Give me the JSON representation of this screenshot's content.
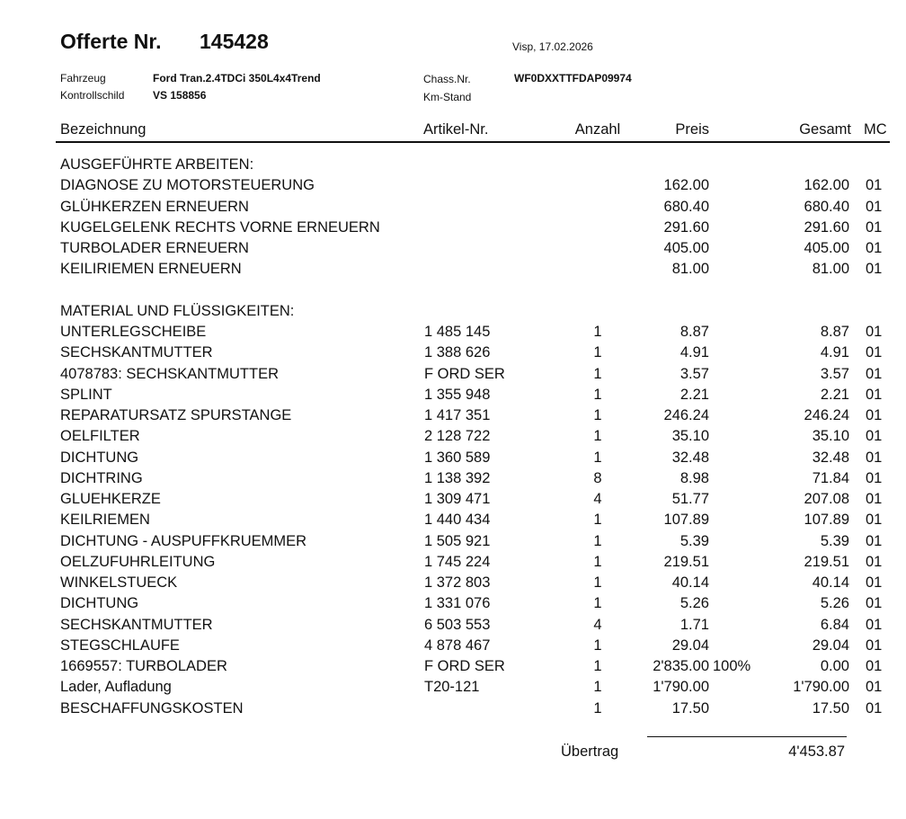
{
  "header": {
    "title": "Offerte Nr.",
    "number": "145428",
    "place_date": "Visp, 17.02.2026",
    "vehicle_label": "Fahrzeug",
    "vehicle": "Ford Tran.2.4TDCi 350L4x4Trend",
    "plate_label": "Kontrollschild",
    "plate": "VS 158856",
    "chassis_label": "Chass.Nr.",
    "chassis": "WF0DXXTTFDAP09974",
    "km_label": "Km-Stand"
  },
  "table": {
    "columns": [
      "Bezeichnung",
      "Artikel-Nr.",
      "Anzahl",
      "Preis",
      "Gesamt",
      "MC"
    ],
    "sections": [
      {
        "title": "AUSGEFÜHRTE ARBEITEN:",
        "rows": [
          {
            "name": "DIAGNOSE ZU MOTORSTEUERUNG",
            "price": "162.00",
            "total": "162.00",
            "mc": "01"
          },
          {
            "name": "GLÜHKERZEN ERNEUERN",
            "price": "680.40",
            "total": "680.40",
            "mc": "01"
          },
          {
            "name": "KUGELGELENK RECHTS VORNE ERNEUERN",
            "price": "291.60",
            "total": "291.60",
            "mc": "01"
          },
          {
            "name": "TURBOLADER ERNEUERN",
            "price": "405.00",
            "total": "405.00",
            "mc": "01"
          },
          {
            "name": "KEILIRIEMEN ERNEUERN",
            "price": "81.00",
            "total": "81.00",
            "mc": "01"
          }
        ]
      },
      {
        "title": "MATERIAL UND FLÜSSIGKEITEN:",
        "rows": [
          {
            "name": "UNTERLEGSCHEIBE",
            "article": "1 485 145",
            "qty": "1",
            "price": "8.87",
            "total": "8.87",
            "mc": "01"
          },
          {
            "name": "SECHSKANTMUTTER",
            "article": "1 388 626",
            "qty": "1",
            "price": "4.91",
            "total": "4.91",
            "mc": "01"
          },
          {
            "name": "4078783: SECHSKANTMUTTER",
            "article": "F ORD SER",
            "qty": "1",
            "price": "3.57",
            "total": "3.57",
            "mc": "01"
          },
          {
            "name": "SPLINT",
            "article": "1 355 948",
            "qty": "1",
            "price": "2.21",
            "total": "2.21",
            "mc": "01"
          },
          {
            "name": "REPARATURSATZ SPURSTANGE",
            "article": "1 417 351",
            "qty": "1",
            "price": "246.24",
            "total": "246.24",
            "mc": "01"
          },
          {
            "name": "OELFILTER",
            "article": "2 128 722",
            "qty": "1",
            "price": "35.10",
            "total": "35.10",
            "mc": "01"
          },
          {
            "name": "DICHTUNG",
            "article": "1 360 589",
            "qty": "1",
            "price": "32.48",
            "total": "32.48",
            "mc": "01"
          },
          {
            "name": "DICHTRING",
            "article": "1 138 392",
            "qty": "8",
            "price": "8.98",
            "total": "71.84",
            "mc": "01"
          },
          {
            "name": "GLUEHKERZE",
            "article": "1 309 471",
            "qty": "4",
            "price": "51.77",
            "total": "207.08",
            "mc": "01"
          },
          {
            "name": "KEILRIEMEN",
            "article": "1 440 434",
            "qty": "1",
            "price": "107.89",
            "total": "107.89",
            "mc": "01"
          },
          {
            "name": "DICHTUNG - AUSPUFFKRUEMMER",
            "article": "1 505 921",
            "qty": "1",
            "price": "5.39",
            "total": "5.39",
            "mc": "01"
          },
          {
            "name": "OELZUFUHRLEITUNG",
            "article": "1 745 224",
            "qty": "1",
            "price": "219.51",
            "total": "219.51",
            "mc": "01"
          },
          {
            "name": "WINKELSTUECK",
            "article": "1 372 803",
            "qty": "1",
            "price": "40.14",
            "total": "40.14",
            "mc": "01"
          },
          {
            "name": "DICHTUNG",
            "article": "1 331 076",
            "qty": "1",
            "price": "5.26",
            "total": "5.26",
            "mc": "01"
          },
          {
            "name": "SECHSKANTMUTTER",
            "article": "6 503 553",
            "qty": "4",
            "price": "1.71",
            "total": "6.84",
            "mc": "01"
          },
          {
            "name": "STEGSCHLAUFE",
            "article": "4 878 467",
            "qty": "1",
            "price": "29.04",
            "total": "29.04",
            "mc": "01"
          },
          {
            "name": "1669557: TURBOLADER",
            "article": "F ORD SER",
            "qty": "1",
            "price": "2'835.00",
            "discount": "100%",
            "total": "0.00",
            "mc": "01"
          },
          {
            "name": "Lader, Aufladung",
            "article": "T20-121",
            "qty": "1",
            "price": "1'790.00",
            "total": "1'790.00",
            "mc": "01"
          },
          {
            "name": "BESCHAFFUNGSKOSTEN",
            "qty": "1",
            "price": "17.50",
            "total": "17.50",
            "mc": "01"
          }
        ]
      }
    ]
  },
  "footer": {
    "label": "Übertrag",
    "value": "4'453.87"
  }
}
